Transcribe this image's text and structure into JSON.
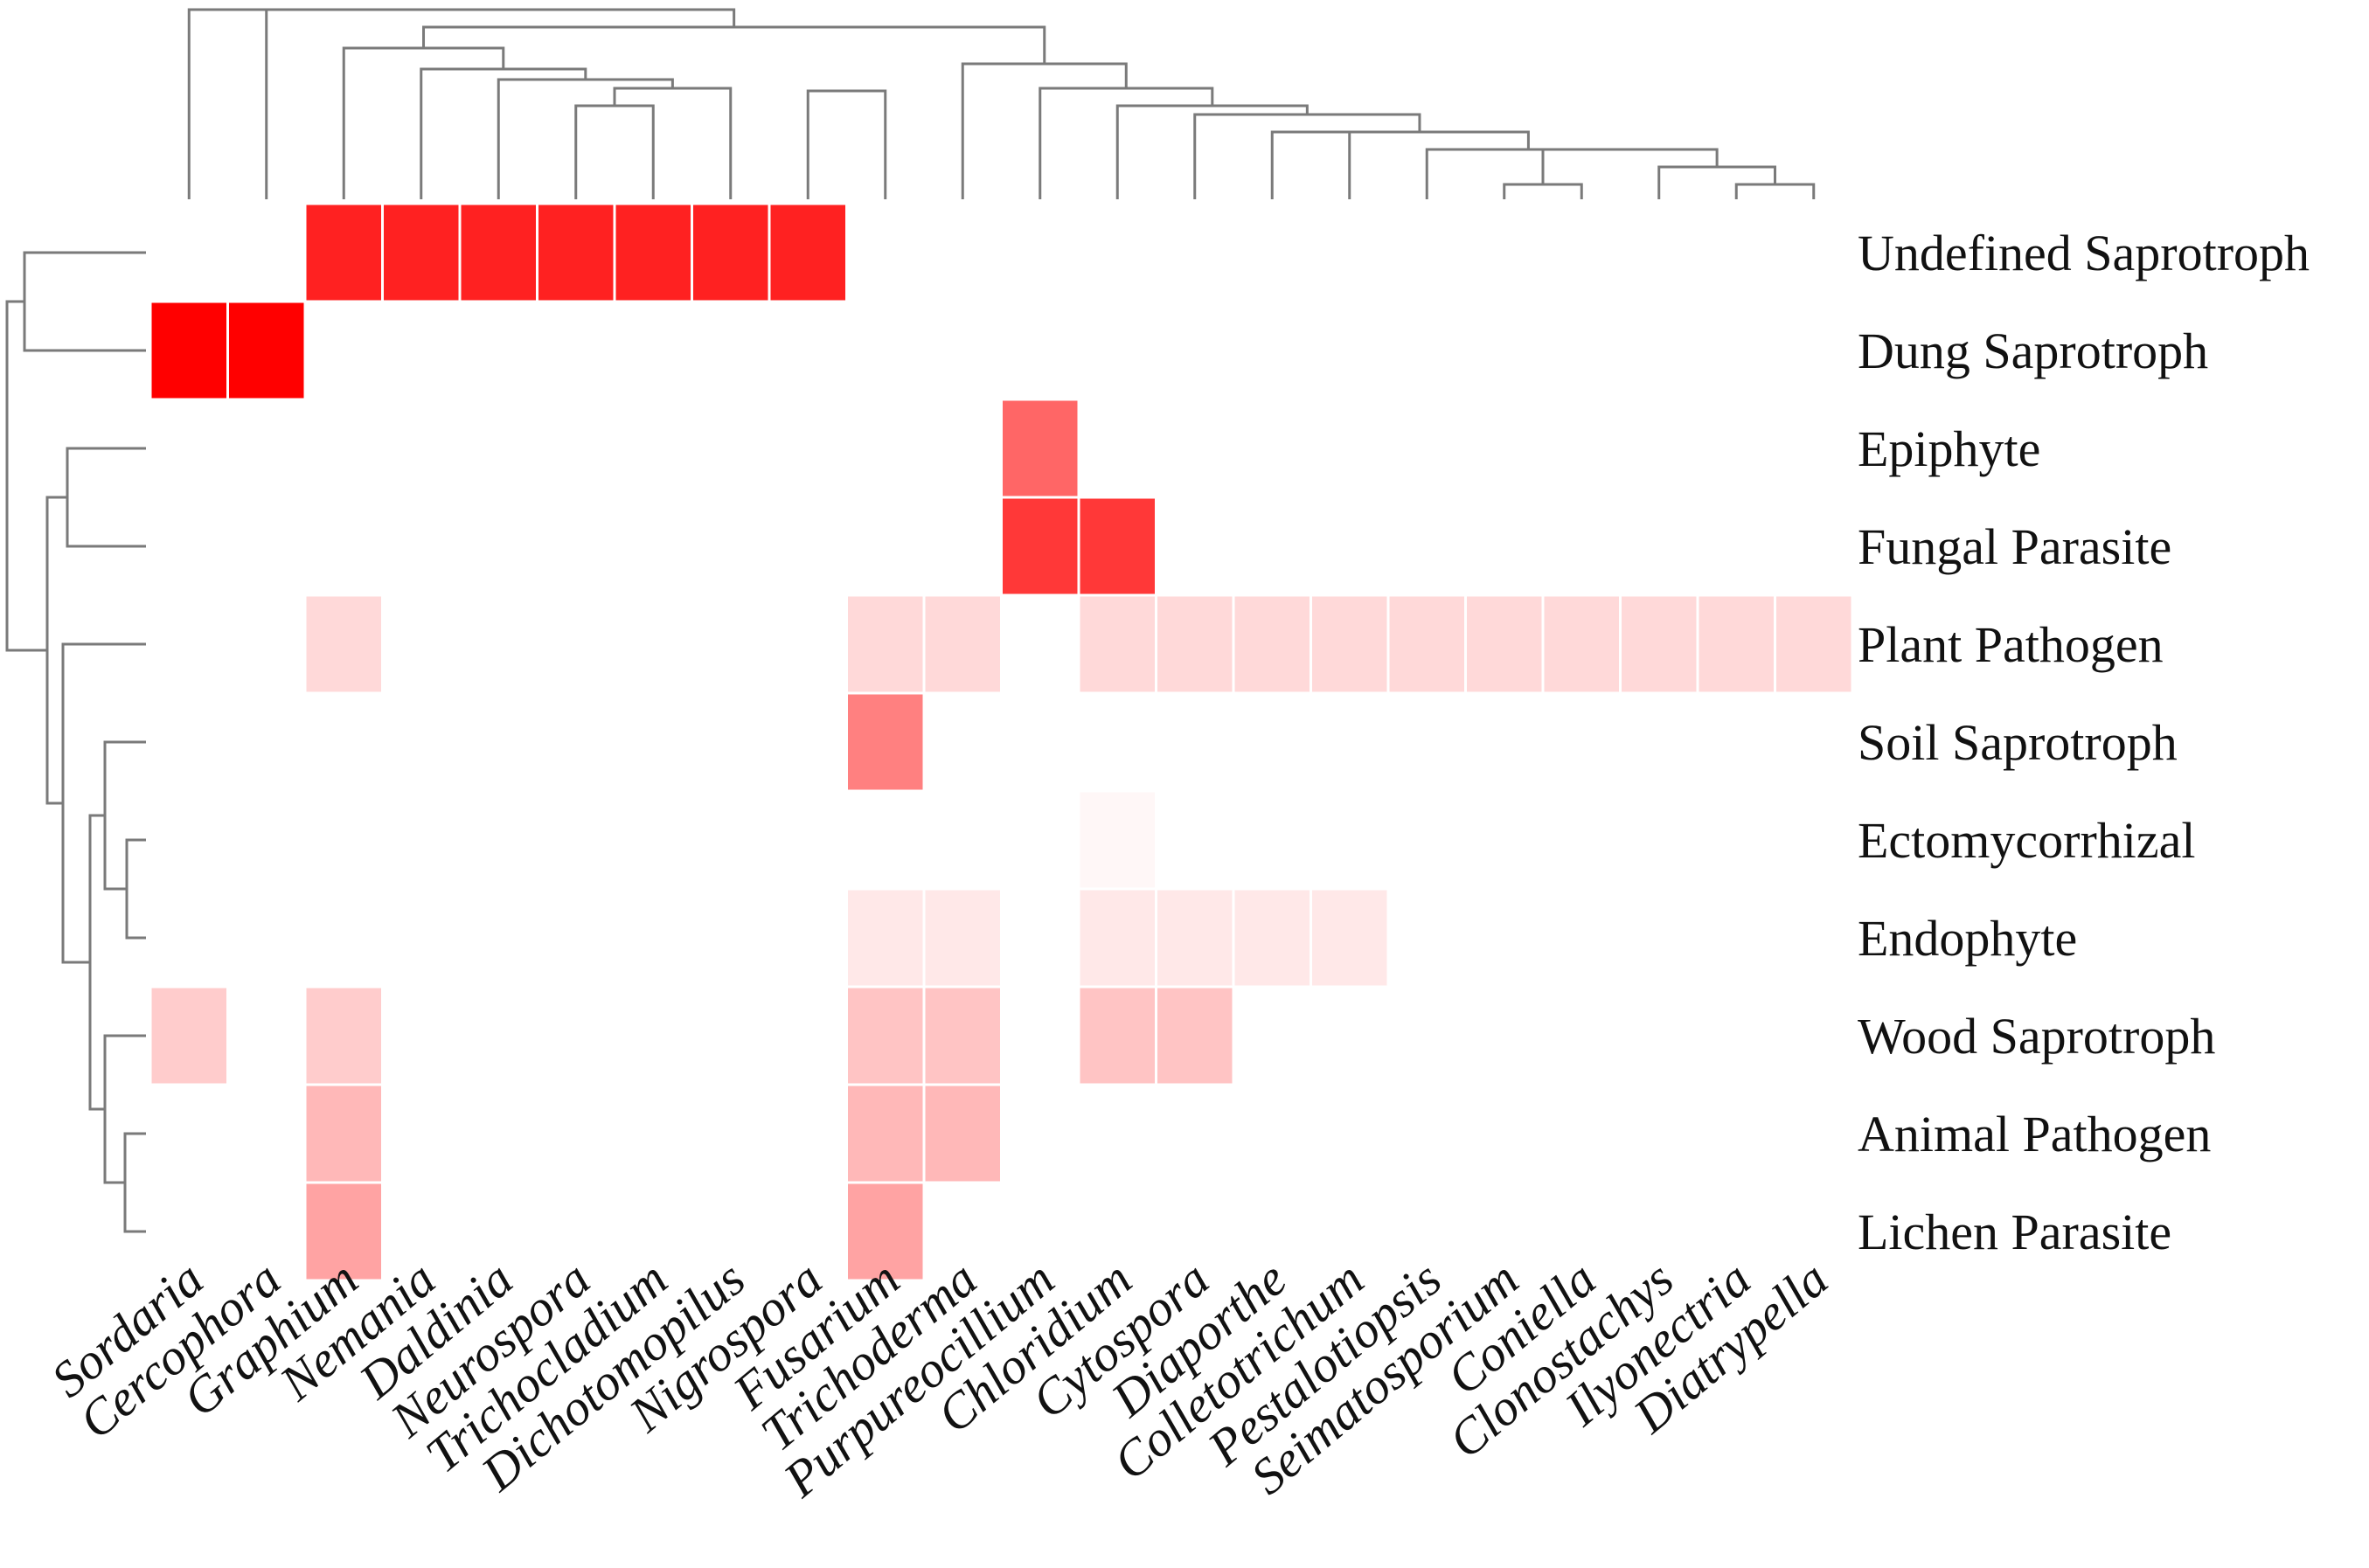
{
  "chart_data": {
    "type": "heatmap",
    "title": "",
    "xlabel": "",
    "ylabel": "",
    "columns": [
      "Sordaria",
      "Cercophora",
      "Graphium",
      "Nemania",
      "Daldinia",
      "Neurospora",
      "Trichocladium",
      "Dichotomopilus",
      "Nigrospora",
      "Fusarium",
      "Trichoderma",
      "Purpureocillium",
      "Chloridium",
      "Cytospora",
      "Diaporthe",
      "Colletotrichum",
      "Pestalotiopsis",
      "Seimatosporium",
      "Coniella",
      "Clonostachys",
      "Ilyonectria",
      "Diatrypella"
    ],
    "rows": [
      "Undefined Saprotroph",
      "Dung Saprotroph",
      "Epiphyte",
      "Fungal Parasite",
      "Plant Pathogen",
      "Soil Saprotroph",
      "Ectomycorrhizal",
      "Endophyte",
      "Wood Saprotroph",
      "Animal Pathogen",
      "Lichen Parasite"
    ],
    "values": [
      [
        0,
        0,
        0.87,
        0.87,
        0.87,
        0.87,
        0.87,
        0.87,
        0.87,
        0,
        0,
        0,
        0,
        0,
        0,
        0,
        0,
        0,
        0,
        0,
        0,
        0
      ],
      [
        1.0,
        1.0,
        0,
        0,
        0,
        0,
        0,
        0,
        0,
        0,
        0,
        0,
        0,
        0,
        0,
        0,
        0,
        0,
        0,
        0,
        0,
        0
      ],
      [
        0,
        0,
        0,
        0,
        0,
        0,
        0,
        0,
        0,
        0,
        0,
        0.6,
        0,
        0,
        0,
        0,
        0,
        0,
        0,
        0,
        0,
        0
      ],
      [
        0,
        0,
        0,
        0,
        0,
        0,
        0,
        0,
        0,
        0,
        0,
        0.78,
        0.78,
        0,
        0,
        0,
        0,
        0,
        0,
        0,
        0,
        0
      ],
      [
        0,
        0,
        0.15,
        0,
        0,
        0,
        0,
        0,
        0,
        0.15,
        0.15,
        0,
        0.15,
        0.15,
        0.15,
        0.15,
        0.15,
        0.15,
        0.15,
        0.15,
        0.15,
        0.15
      ],
      [
        0,
        0,
        0,
        0,
        0,
        0,
        0,
        0,
        0,
        0.5,
        0,
        0,
        0,
        0,
        0,
        0,
        0,
        0,
        0,
        0,
        0,
        0
      ],
      [
        0,
        0,
        0,
        0,
        0,
        0,
        0,
        0,
        0,
        0,
        0,
        0,
        0.03,
        0,
        0,
        0,
        0,
        0,
        0,
        0,
        0,
        0
      ],
      [
        0,
        0,
        0,
        0,
        0,
        0,
        0,
        0,
        0,
        0.09,
        0.09,
        0,
        0.09,
        0.09,
        0.09,
        0.09,
        0,
        0,
        0,
        0,
        0,
        0
      ],
      [
        0.2,
        0,
        0.2,
        0,
        0,
        0,
        0,
        0,
        0,
        0.23,
        0.23,
        0,
        0.23,
        0.23,
        0,
        0,
        0,
        0,
        0,
        0,
        0,
        0
      ],
      [
        0,
        0,
        0.28,
        0,
        0,
        0,
        0,
        0,
        0,
        0.28,
        0.28,
        0,
        0,
        0,
        0,
        0,
        0,
        0,
        0,
        0,
        0,
        0
      ],
      [
        0,
        0,
        0.36,
        0,
        0,
        0,
        0,
        0,
        0,
        0.36,
        0,
        0,
        0,
        0,
        0,
        0,
        0,
        0,
        0,
        0,
        0,
        0
      ]
    ],
    "color_scale": {
      "low": "#ffffff",
      "high": "#ff0000"
    },
    "legend": "none"
  }
}
